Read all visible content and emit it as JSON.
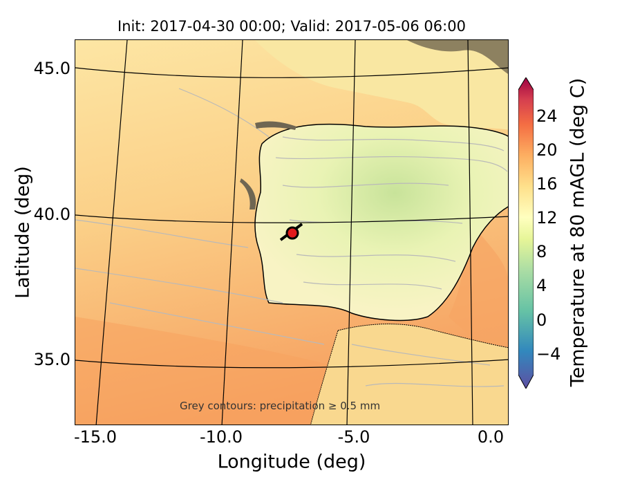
{
  "title": "Init: 2017-04-30 00:00; Valid: 2017-05-06 06:00",
  "axes": {
    "xlabel": "Longitude (deg)",
    "ylabel": "Latitude (deg)",
    "xticks": [
      "-15.0",
      "-10.0",
      "-5.0",
      "0.0"
    ],
    "yticks": [
      "45.0",
      "40.0",
      "35.0"
    ]
  },
  "colorbar": {
    "label": "Temperature at 80 mAGL (deg C)",
    "ticks": [
      "24",
      "20",
      "16",
      "12",
      "8",
      "4",
      "0",
      "−4"
    ],
    "colors": [
      "#5e4fa2",
      "#3288bd",
      "#66c2a5",
      "#abdda4",
      "#e6f598",
      "#ffffbf",
      "#fee08b",
      "#fdae61",
      "#f46d43",
      "#d53e4f",
      "#9e0142"
    ]
  },
  "annotation": "Grey contours: precipitation ≥ 0.5 mm",
  "marker": {
    "name": "site",
    "color": "#e31a1c"
  },
  "map": {
    "extent_lon": [
      -16,
      0
    ],
    "extent_lat": [
      33,
      46
    ],
    "ocean_colors": {
      "north": "#fde6a4",
      "south": "#f6a564"
    },
    "land_color": "#f5f2c8"
  }
}
